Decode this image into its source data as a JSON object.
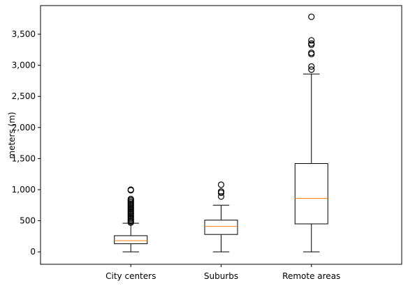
{
  "chart_data": {
    "type": "box",
    "title": "",
    "xlabel": "",
    "ylabel": "meters (m)",
    "ylim": [
      -200,
      3960
    ],
    "yticks": [
      0,
      500,
      1000,
      1500,
      2000,
      2500,
      3000,
      3500
    ],
    "ytick_labels": [
      "0",
      "500",
      "1,000",
      "1,500",
      "2,000",
      "2,500",
      "3,000",
      "3,500"
    ],
    "categories": [
      "City centers",
      "Suburbs",
      "Remote areas"
    ],
    "boxes": [
      {
        "category": "City centers",
        "whisker_low": 0,
        "q1": 130,
        "median": 180,
        "q3": 260,
        "whisker_high": 460,
        "outliers": [
          470,
          490,
          510,
          530,
          550,
          570,
          590,
          610,
          630,
          650,
          670,
          690,
          710,
          730,
          750,
          770,
          790,
          810,
          830,
          850,
          990,
          1000
        ]
      },
      {
        "category": "Suburbs",
        "whisker_low": 0,
        "q1": 280,
        "median": 410,
        "q3": 510,
        "whisker_high": 750,
        "outliers": [
          890,
          950,
          970,
          1080
        ]
      },
      {
        "category": "Remote areas",
        "whisker_low": 0,
        "q1": 450,
        "median": 860,
        "q3": 1420,
        "whisker_high": 2860,
        "outliers": [
          2930,
          2980,
          3180,
          3200,
          3330,
          3350,
          3400,
          3780
        ]
      }
    ],
    "colors": {
      "box": "#000000",
      "median": "#ff7f0e",
      "outlier": "#000000"
    },
    "grid": false,
    "legend": "none"
  }
}
